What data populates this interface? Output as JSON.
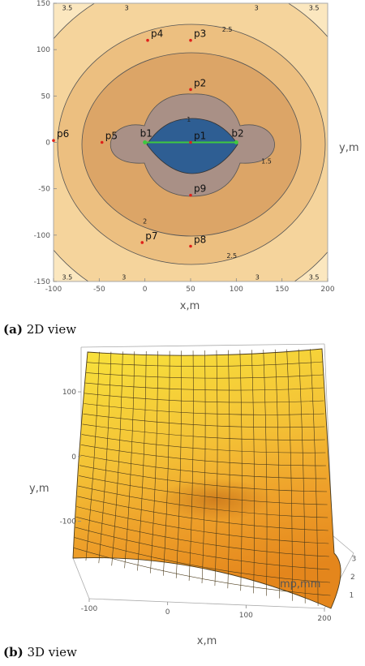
{
  "chart_data": [
    {
      "type": "contour",
      "caption_tag": "(a)",
      "caption_text": "2D view",
      "xlabel": "x,m",
      "ylabel": "y,m",
      "xlim": [
        -100,
        200
      ],
      "ylim": [
        -150,
        150
      ],
      "x_ticks": [
        -100,
        -50,
        0,
        50,
        100,
        150,
        200
      ],
      "y_ticks": [
        -150,
        -100,
        -50,
        0,
        50,
        100,
        150
      ],
      "contour_labels": [
        {
          "text": "3.5",
          "x": -85,
          "y": 145
        },
        {
          "text": "3",
          "x": -20,
          "y": 145
        },
        {
          "text": "3",
          "x": 122,
          "y": 145
        },
        {
          "text": "3.5",
          "x": 185,
          "y": 145
        },
        {
          "text": "2.5",
          "x": 90,
          "y": 122
        },
        {
          "text": "1",
          "x": 48,
          "y": 25
        },
        {
          "text": "1.5",
          "x": 133,
          "y": -20
        },
        {
          "text": "2",
          "x": 0,
          "y": -85
        },
        {
          "text": "2.5",
          "x": 95,
          "y": -122
        },
        {
          "text": "3.5",
          "x": -85,
          "y": -145
        },
        {
          "text": "3",
          "x": -23,
          "y": -145
        },
        {
          "text": "3",
          "x": 123,
          "y": -145
        },
        {
          "text": "3.5",
          "x": 185,
          "y": -145
        }
      ],
      "points": [
        {
          "name": "p1",
          "x": 50,
          "y": 0
        },
        {
          "name": "p2",
          "x": 50,
          "y": 57
        },
        {
          "name": "p3",
          "x": 50,
          "y": 110
        },
        {
          "name": "p4",
          "x": 3,
          "y": 110
        },
        {
          "name": "p5",
          "x": -47,
          "y": 0
        },
        {
          "name": "p6",
          "x": -100,
          "y": 2
        },
        {
          "name": "p7",
          "x": -3,
          "y": -108
        },
        {
          "name": "p8",
          "x": 50,
          "y": -112
        },
        {
          "name": "p9",
          "x": 50,
          "y": -57
        }
      ],
      "baseline": {
        "start": {
          "name": "b1",
          "x": 0,
          "y": 0
        },
        "end": {
          "name": "b2",
          "x": 100,
          "y": 0
        }
      },
      "colors": {
        "frame": "#a8a8a8",
        "center": "#2e5e93",
        "point": "#e0201a",
        "baseline": "#3fc83f"
      }
    },
    {
      "type": "surface3d",
      "caption_tag": "(b)",
      "caption_text": "3D view",
      "xlabel": "x,m",
      "ylabel": "y,m",
      "zlabel": "mp,mm",
      "x_ticks": [
        -100,
        0,
        100,
        200
      ],
      "y_ticks": [
        100,
        0,
        -100
      ],
      "z_ticks": [
        1,
        2,
        3
      ],
      "colors": {
        "high": "#f7df3a",
        "mid": "#f3b032",
        "low": "#e98a1c",
        "grid": "#4a3a1a"
      }
    }
  ]
}
